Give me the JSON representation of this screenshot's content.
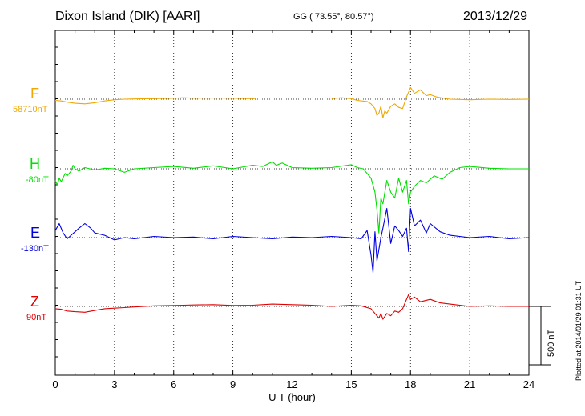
{
  "header": {
    "station": "Dixon Island (DIK)  [AARI]",
    "coords": "GG ( 73.55°,  80.57°)",
    "date": "2013/12/29"
  },
  "footer_note": "Plotted at 2014/01/29 01:31  UT",
  "scale_label": "500 nT",
  "chart_data": {
    "type": "line",
    "xlabel": "U T (hour)",
    "xlim": [
      0,
      24
    ],
    "xticks": [
      0,
      3,
      6,
      9,
      12,
      15,
      18,
      21,
      24
    ],
    "xtick_labels": [
      "0",
      "3",
      "6",
      "9",
      "12",
      "15",
      "18",
      "21",
      "24"
    ],
    "grid": true,
    "scale_bar_nT": 500,
    "y_units": "nT offset from baseline (approx.)",
    "series": [
      {
        "name": "F",
        "baseline_label": "58710nT",
        "color": "#f0a800",
        "x": [
          0,
          0.3,
          0.6,
          1.0,
          1.5,
          2.0,
          2.5,
          3.0,
          3.5,
          4,
          5,
          6,
          6.5,
          7,
          8,
          9,
          10,
          10.1
        ],
        "y": [
          -10,
          -15,
          -25,
          -35,
          -40,
          -30,
          -15,
          -5,
          0,
          2,
          5,
          8,
          12,
          8,
          10,
          8,
          5,
          5
        ]
      },
      {
        "name": "F",
        "baseline_label": "58710nT",
        "color": "#f0a800",
        "x": [
          14,
          14.5,
          15,
          15.3,
          15.8,
          16.0,
          16.2,
          16.3,
          16.4,
          16.5,
          16.6,
          16.7,
          16.8,
          17.0,
          17.2,
          17.4,
          17.6,
          17.8,
          17.9,
          18.0,
          18.2,
          18.5,
          18.8,
          19.0,
          19.3,
          19.6,
          20,
          21,
          22,
          23,
          24
        ],
        "y": [
          5,
          12,
          5,
          -10,
          -20,
          -40,
          -80,
          -140,
          -120,
          -60,
          -160,
          -100,
          -120,
          -60,
          -40,
          -70,
          -80,
          20,
          60,
          100,
          50,
          80,
          30,
          40,
          20,
          10,
          0,
          -5,
          0,
          -2,
          0
        ]
      },
      {
        "name": "H",
        "baseline_label": "-80nT",
        "color": "#00e000",
        "x": [
          0,
          0.1,
          0.2,
          0.3,
          0.5,
          0.6,
          0.8,
          0.9,
          1.0,
          1.2,
          1.5,
          2.0,
          2.5,
          3.0,
          3.5,
          4.0,
          5,
          6,
          7,
          8,
          9,
          10,
          10.5,
          11.0,
          11.2,
          11.5,
          12,
          13,
          14,
          15,
          15.3,
          15.6,
          16.0,
          16.2,
          16.3,
          16.4,
          16.5,
          16.6,
          16.8,
          17.0,
          17.2,
          17.4,
          17.6,
          17.8,
          17.9,
          18.0,
          18.2,
          18.5,
          18.8,
          19.2,
          19.6,
          20.0,
          20.5,
          21,
          22,
          23,
          24
        ],
        "y": [
          -100,
          -140,
          -80,
          -110,
          -40,
          -60,
          -20,
          30,
          0,
          -20,
          10,
          -10,
          5,
          0,
          -30,
          0,
          10,
          20,
          5,
          25,
          0,
          30,
          20,
          60,
          30,
          50,
          10,
          5,
          10,
          35,
          10,
          0,
          -80,
          -200,
          -350,
          -550,
          -250,
          -300,
          -100,
          -200,
          -250,
          -80,
          -200,
          -100,
          -300,
          -200,
          -150,
          -100,
          -120,
          -60,
          -90,
          -30,
          10,
          20,
          5,
          0,
          0
        ]
      },
      {
        "name": "E",
        "baseline_label": "-130nT",
        "color": "#0000e0",
        "x": [
          0,
          0.2,
          0.4,
          0.6,
          0.8,
          1.0,
          1.2,
          1.5,
          1.8,
          2.0,
          2.5,
          3.0,
          3.5,
          4,
          5,
          6,
          7,
          8,
          9,
          10,
          11,
          12,
          13,
          14,
          15,
          15.5,
          15.8,
          16.0,
          16.1,
          16.2,
          16.3,
          16.5,
          16.6,
          16.8,
          17.0,
          17.2,
          17.4,
          17.6,
          17.8,
          17.9,
          18.0,
          18.2,
          18.5,
          18.8,
          19.0,
          19.5,
          20,
          21,
          22,
          23,
          24
        ],
        "y": [
          60,
          120,
          40,
          -10,
          20,
          50,
          80,
          120,
          80,
          40,
          20,
          -20,
          0,
          -10,
          10,
          0,
          5,
          -10,
          10,
          0,
          -10,
          5,
          0,
          10,
          0,
          -10,
          60,
          -150,
          -300,
          50,
          -200,
          0,
          80,
          250,
          -50,
          100,
          60,
          10,
          80,
          -120,
          250,
          100,
          150,
          40,
          120,
          50,
          20,
          0,
          10,
          -10,
          0
        ]
      },
      {
        "name": "Z",
        "baseline_label": "90nT",
        "color": "#e00000",
        "x": [
          0,
          0.3,
          0.6,
          1.0,
          1.5,
          2.0,
          2.5,
          3.0,
          3.5,
          4,
          5,
          6,
          6.5,
          7,
          8,
          9,
          10,
          11,
          12,
          13,
          14,
          15,
          15.5,
          16.0,
          16.2,
          16.4,
          16.5,
          16.6,
          16.8,
          17.0,
          17.2,
          17.4,
          17.6,
          17.8,
          17.9,
          18.0,
          18.2,
          18.5,
          19.0,
          19.5,
          20,
          21,
          22,
          23,
          24
        ],
        "y": [
          -20,
          -25,
          -40,
          -45,
          -50,
          -35,
          -20,
          -15,
          -10,
          -5,
          5,
          8,
          10,
          12,
          15,
          8,
          10,
          20,
          15,
          10,
          0,
          10,
          5,
          -20,
          -60,
          -100,
          -60,
          -110,
          -60,
          -80,
          -40,
          -50,
          -20,
          60,
          100,
          60,
          80,
          40,
          60,
          30,
          20,
          0,
          5,
          0,
          0
        ]
      }
    ]
  }
}
